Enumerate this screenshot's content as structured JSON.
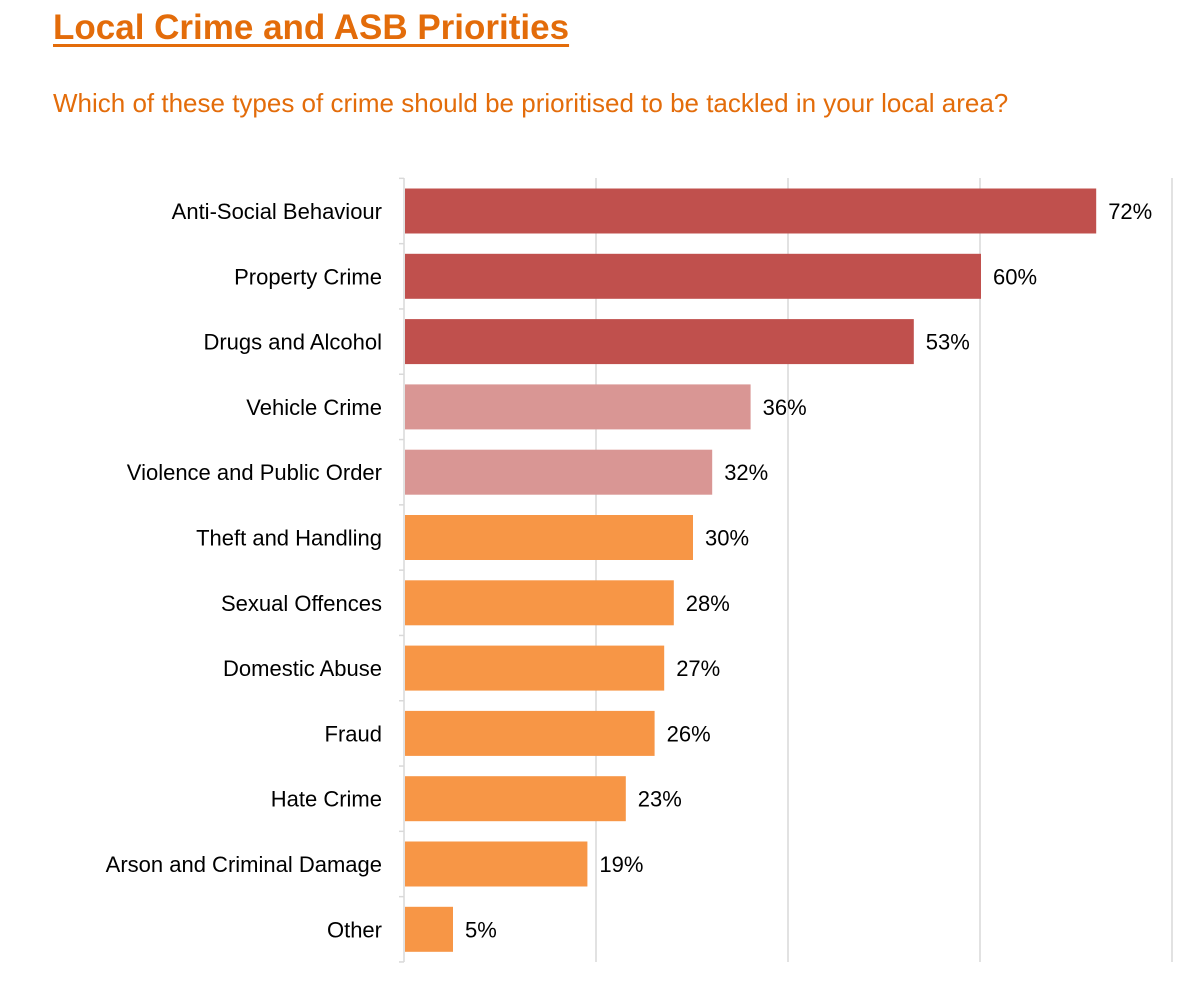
{
  "header": {
    "title": "Local Crime and ASB Priorities",
    "subtitle": "Which of these types of crime should be prioritised to be tackled in your local area?"
  },
  "chart_data": {
    "type": "bar",
    "orientation": "horizontal",
    "categories": [
      "Anti-Social Behaviour",
      "Property Crime",
      "Drugs and Alcohol",
      "Vehicle Crime",
      "Violence and Public Order",
      "Theft and Handling",
      "Sexual Offences",
      "Domestic Abuse",
      "Fraud",
      "Hate Crime",
      "Arson and Criminal Damage",
      "Other"
    ],
    "values": [
      72,
      60,
      53,
      36,
      32,
      30,
      28,
      27,
      26,
      23,
      19,
      5
    ],
    "value_labels": [
      "72%",
      "60%",
      "53%",
      "36%",
      "32%",
      "30%",
      "28%",
      "27%",
      "26%",
      "23%",
      "19%",
      "5%"
    ],
    "bar_colors": [
      "#c0504d",
      "#c0504d",
      "#c0504d",
      "#d99694",
      "#d99694",
      "#f79646",
      "#f79646",
      "#f79646",
      "#f79646",
      "#f79646",
      "#f79646",
      "#f79646"
    ],
    "xlim": [
      0,
      80
    ],
    "grid_step": 20,
    "grid": true,
    "legend": "none"
  }
}
